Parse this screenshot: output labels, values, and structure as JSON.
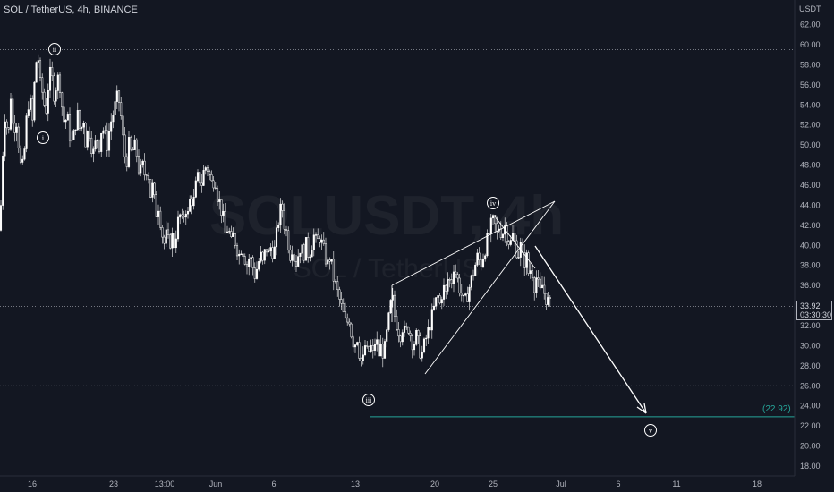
{
  "header": {
    "symbol_line": "SOL / TetherUS, 4h, BINANCE",
    "currency": "USDT"
  },
  "watermark": {
    "symbol": "SOLUSDT, 4h",
    "name": "SOL / TetherUS"
  },
  "current_price": {
    "value": "33.92",
    "countdown": "03:30:30"
  },
  "target_label": "(22.92)",
  "colors": {
    "background": "#131722",
    "candle": "#ffffff",
    "target_line": "#26a69a",
    "text": "#b2b5be"
  },
  "chart_data": {
    "type": "candlestick",
    "title": "SOL / TetherUS, 4h, BINANCE",
    "ylim": [
      17,
      64
    ],
    "y_ticks": [
      "18.00",
      "20.00",
      "22.00",
      "24.00",
      "26.00",
      "28.00",
      "30.00",
      "32.00",
      "34.00",
      "36.00",
      "38.00",
      "40.00",
      "42.00",
      "44.00",
      "46.00",
      "48.00",
      "50.00",
      "52.00",
      "54.00",
      "56.00",
      "58.00",
      "60.00",
      "62.00"
    ],
    "x_ticks": [
      "16",
      "23",
      "13:00",
      "Jun",
      "6",
      "13",
      "20",
      "25",
      "Jul",
      "6",
      "11",
      "18"
    ],
    "horizontal_levels": [
      59.5,
      33.92,
      26.0,
      22.92
    ],
    "wave_labels": [
      "i",
      "ii",
      "iii",
      "iv",
      "v"
    ],
    "projected_target": 22.92,
    "price_path": [
      [
        0,
        41.5
      ],
      [
        3,
        49
      ],
      [
        6,
        54
      ],
      [
        9,
        50
      ],
      [
        12,
        55
      ],
      [
        15,
        51
      ],
      [
        18,
        53
      ],
      [
        21,
        50
      ],
      [
        24,
        47
      ],
      [
        27,
        49
      ],
      [
        30,
        53
      ],
      [
        33,
        55
      ],
      [
        36,
        52
      ],
      [
        39,
        57
      ],
      [
        42,
        59.5
      ],
      [
        45,
        56
      ],
      [
        48,
        55
      ],
      [
        51,
        53
      ],
      [
        54,
        56
      ],
      [
        57,
        57.5
      ],
      [
        60,
        55
      ],
      [
        63,
        56
      ],
      [
        66,
        57
      ],
      [
        69,
        54
      ],
      [
        72,
        52
      ],
      [
        75,
        53
      ],
      [
        78,
        51
      ],
      [
        81,
        50
      ],
      [
        84,
        52
      ],
      [
        87,
        53
      ],
      [
        90,
        51
      ],
      [
        93,
        53
      ],
      [
        96,
        50
      ],
      [
        99,
        52
      ],
      [
        102,
        50
      ],
      [
        105,
        49
      ],
      [
        108,
        51
      ],
      [
        111,
        50
      ],
      [
        114,
        52
      ],
      [
        117,
        51
      ],
      [
        120,
        50
      ],
      [
        123,
        52
      ],
      [
        126,
        53
      ],
      [
        129,
        54
      ],
      [
        132,
        55
      ],
      [
        135,
        53
      ],
      [
        138,
        50
      ],
      [
        141,
        48
      ],
      [
        144,
        50
      ],
      [
        147,
        49
      ],
      [
        150,
        50
      ],
      [
        153,
        49
      ],
      [
        156,
        47
      ],
      [
        159,
        48
      ],
      [
        162,
        47
      ],
      [
        165,
        48
      ],
      [
        168,
        45
      ],
      [
        171,
        46
      ],
      [
        174,
        43
      ],
      [
        177,
        44
      ],
      [
        180,
        42
      ],
      [
        183,
        40
      ],
      [
        186,
        41
      ],
      [
        189,
        40
      ],
      [
        192,
        41
      ],
      [
        195,
        40
      ],
      [
        198,
        42
      ],
      [
        201,
        43
      ],
      [
        204,
        42
      ],
      [
        207,
        44
      ],
      [
        210,
        43
      ],
      [
        213,
        45
      ],
      [
        216,
        44
      ],
      [
        219,
        46
      ],
      [
        222,
        47
      ],
      [
        225,
        46
      ],
      [
        228,
        47.5
      ],
      [
        231,
        48
      ],
      [
        234,
        47
      ],
      [
        237,
        46
      ],
      [
        240,
        47
      ],
      [
        243,
        45
      ],
      [
        246,
        44
      ],
      [
        249,
        43
      ],
      [
        252,
        41
      ],
      [
        255,
        42
      ],
      [
        258,
        40
      ],
      [
        261,
        41
      ],
      [
        264,
        40
      ],
      [
        267,
        39
      ],
      [
        270,
        40
      ],
      [
        273,
        39
      ],
      [
        276,
        38
      ],
      [
        279,
        39
      ],
      [
        282,
        38
      ],
      [
        285,
        37
      ],
      [
        288,
        38
      ],
      [
        291,
        39
      ],
      [
        294,
        38
      ],
      [
        297,
        40
      ],
      [
        300,
        39
      ],
      [
        303,
        40
      ],
      [
        306,
        39
      ],
      [
        309,
        41
      ],
      [
        312,
        43
      ],
      [
        315,
        44
      ],
      [
        318,
        42
      ],
      [
        321,
        41
      ],
      [
        324,
        39
      ],
      [
        327,
        40
      ],
      [
        330,
        38
      ],
      [
        333,
        39
      ],
      [
        336,
        40
      ],
      [
        339,
        39
      ],
      [
        342,
        40
      ],
      [
        345,
        39
      ],
      [
        348,
        40
      ],
      [
        351,
        41
      ],
      [
        354,
        40
      ],
      [
        357,
        41
      ],
      [
        360,
        40
      ],
      [
        363,
        39
      ],
      [
        366,
        38
      ],
      [
        369,
        39
      ],
      [
        372,
        37
      ],
      [
        375,
        36
      ],
      [
        378,
        35
      ],
      [
        381,
        34
      ],
      [
        384,
        33
      ],
      [
        387,
        32
      ],
      [
        390,
        33
      ],
      [
        393,
        31
      ],
      [
        396,
        30
      ],
      [
        399,
        31
      ],
      [
        402,
        29
      ],
      [
        405,
        28
      ],
      [
        408,
        30
      ],
      [
        411,
        29
      ],
      [
        414,
        30
      ],
      [
        417,
        29
      ],
      [
        420,
        31
      ],
      [
        423,
        29
      ],
      [
        426,
        30
      ],
      [
        429,
        29
      ],
      [
        432,
        31
      ],
      [
        435,
        33
      ],
      [
        438,
        35
      ],
      [
        441,
        33
      ],
      [
        444,
        32
      ],
      [
        447,
        31
      ],
      [
        450,
        32
      ],
      [
        453,
        31
      ],
      [
        456,
        32
      ],
      [
        459,
        31
      ],
      [
        462,
        30
      ],
      [
        465,
        31
      ],
      [
        468,
        30
      ],
      [
        471,
        29
      ],
      [
        474,
        30
      ],
      [
        477,
        31
      ],
      [
        480,
        32
      ],
      [
        483,
        33
      ],
      [
        486,
        34
      ],
      [
        489,
        35
      ],
      [
        492,
        34
      ],
      [
        495,
        36
      ],
      [
        498,
        35
      ],
      [
        501,
        37
      ],
      [
        504,
        36
      ],
      [
        507,
        38
      ],
      [
        510,
        37
      ],
      [
        513,
        36
      ],
      [
        516,
        35
      ],
      [
        519,
        34
      ],
      [
        522,
        35
      ],
      [
        525,
        36
      ],
      [
        528,
        37
      ],
      [
        531,
        38
      ],
      [
        534,
        39
      ],
      [
        537,
        38
      ],
      [
        540,
        39
      ],
      [
        543,
        40
      ],
      [
        546,
        41
      ],
      [
        549,
        42
      ],
      [
        552,
        42.5
      ],
      [
        555,
        41
      ],
      [
        558,
        42
      ],
      [
        561,
        41
      ],
      [
        564,
        42
      ],
      [
        567,
        41
      ],
      [
        570,
        40
      ],
      [
        573,
        41
      ],
      [
        576,
        40
      ],
      [
        579,
        39
      ],
      [
        582,
        40
      ],
      [
        585,
        38
      ],
      [
        588,
        39
      ],
      [
        591,
        37
      ],
      [
        594,
        38
      ],
      [
        597,
        36
      ],
      [
        600,
        37
      ],
      [
        603,
        35
      ],
      [
        606,
        36
      ],
      [
        609,
        35
      ],
      [
        612,
        34.5
      ],
      [
        615,
        33.92
      ]
    ]
  }
}
